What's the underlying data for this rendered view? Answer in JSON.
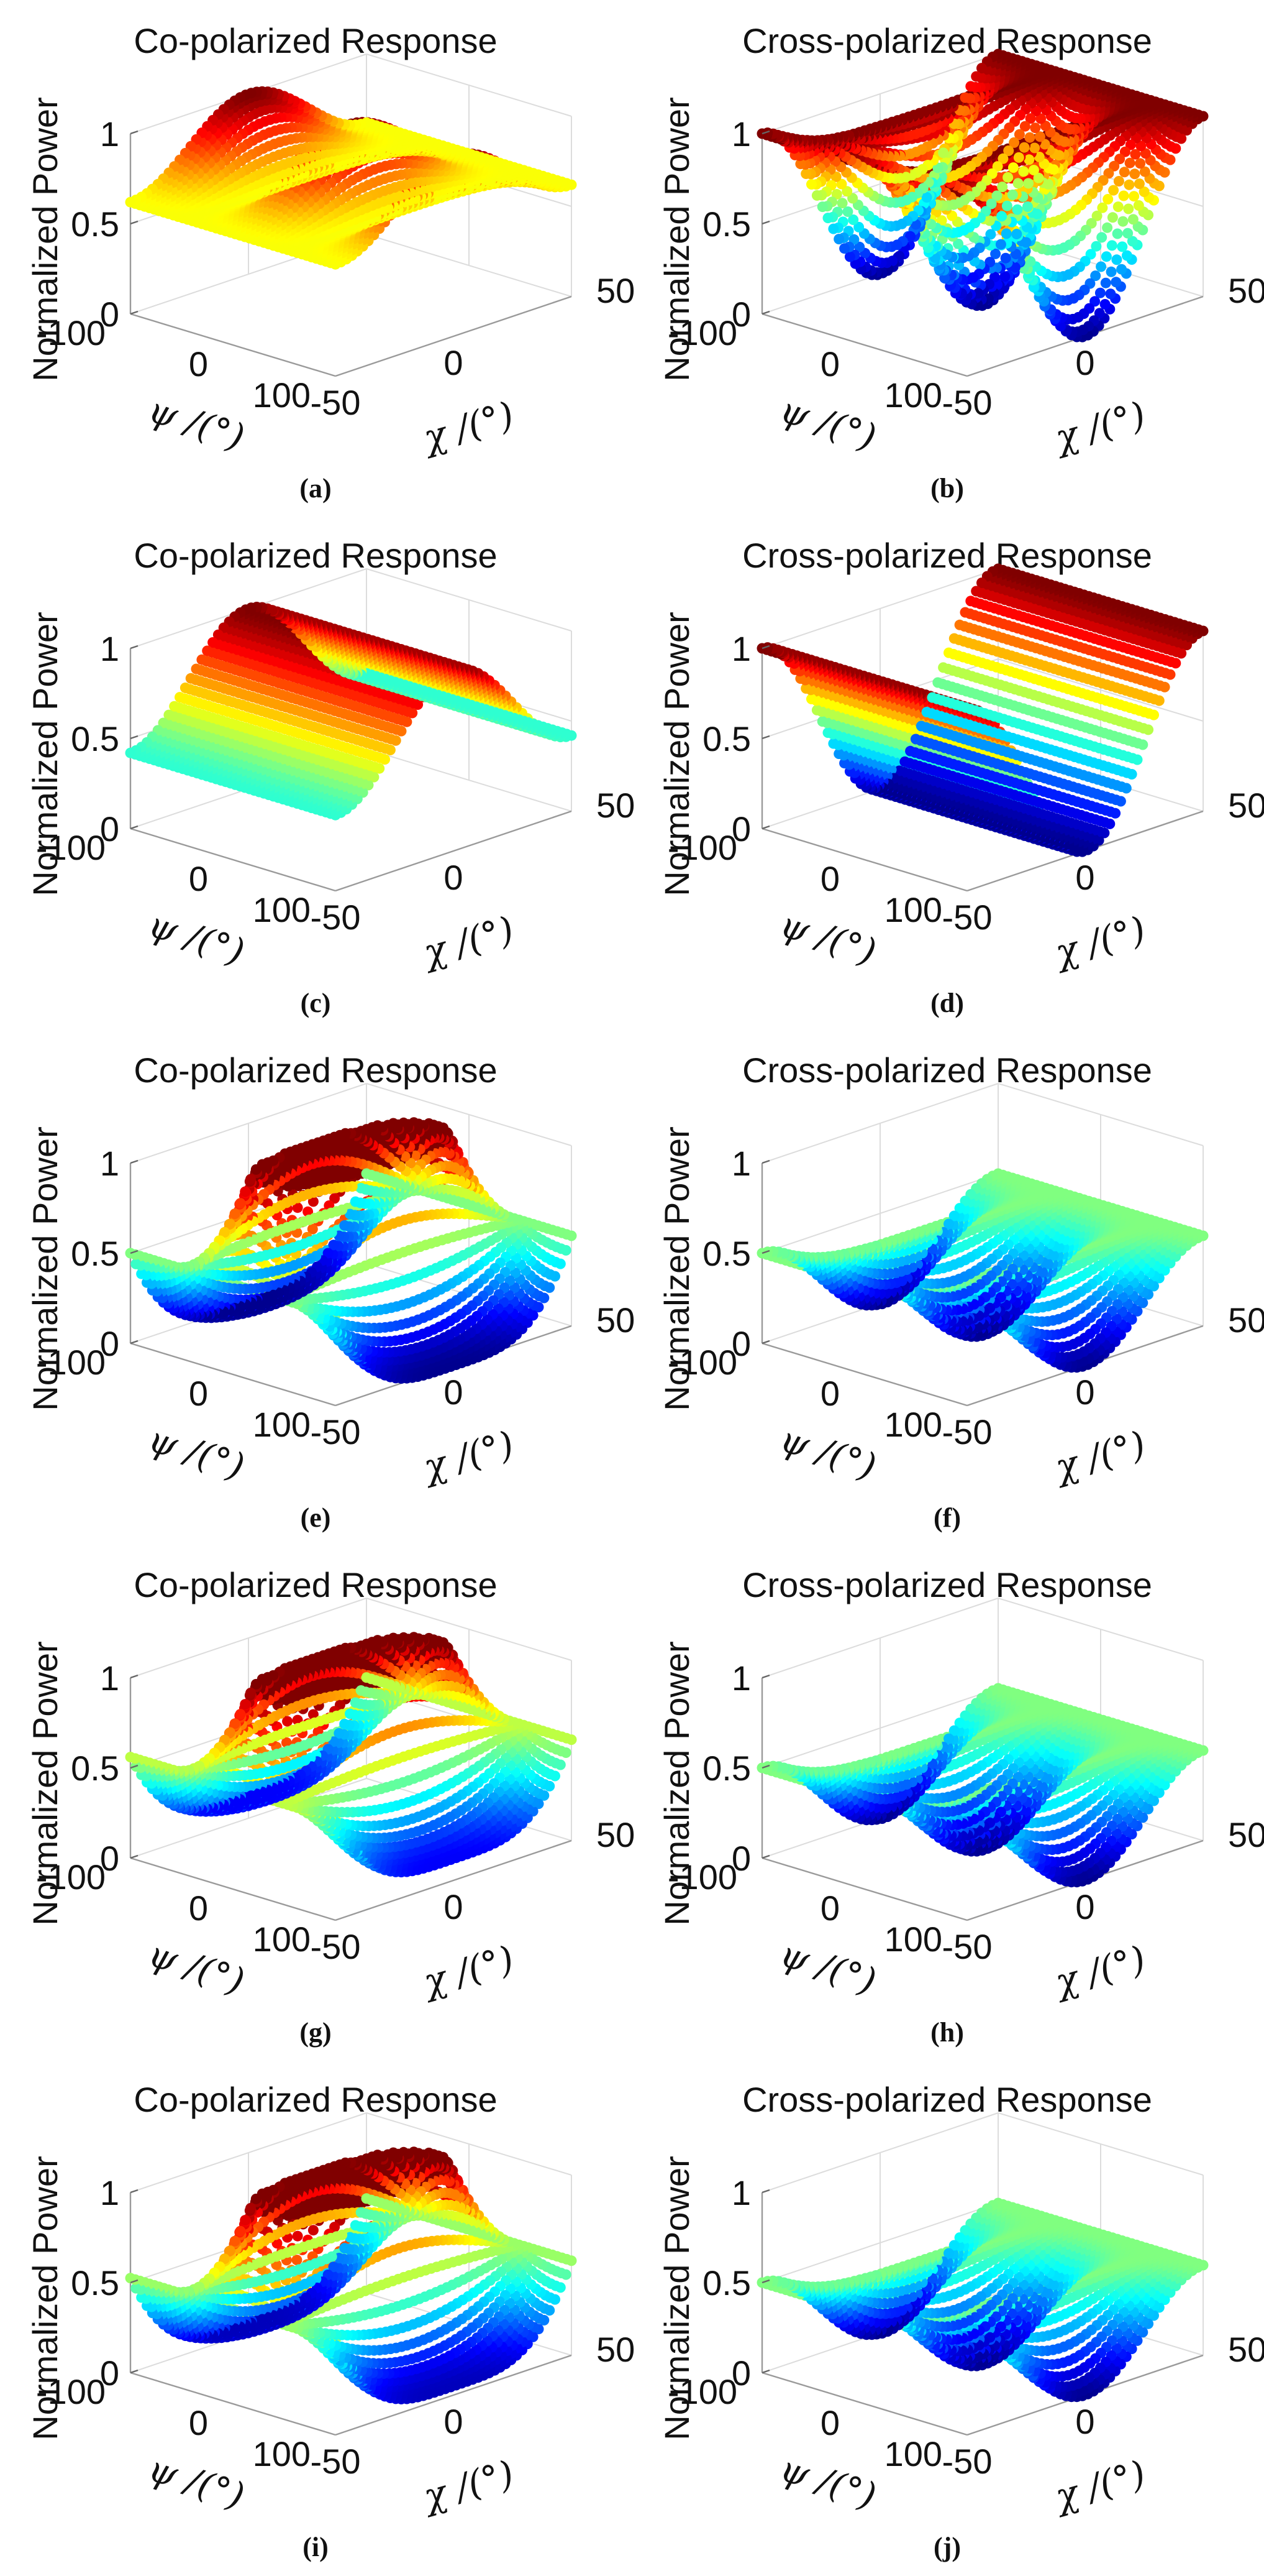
{
  "figure": {
    "colormap": [
      "#00008f",
      "#0000ff",
      "#0080ff",
      "#00ffff",
      "#80ff80",
      "#ffff00",
      "#ff8000",
      "#ff0000",
      "#800000"
    ],
    "axis_color": "#9a9a9a",
    "grid_color": "#dcdcdc"
  },
  "chart_data": [
    {
      "panel": "a",
      "caption": "(a)",
      "type": "surface3d",
      "model": "co_ellipsoid",
      "title": "Co-polarized Response",
      "zlabel": "Normalized Power",
      "xlabel": "χ /(°)",
      "ylabel": "ψ /(°)",
      "xlim": [
        -45,
        45
      ],
      "ylim": [
        -90,
        90
      ],
      "zlim": [
        0,
        1
      ],
      "xticks": [
        "-50",
        "0",
        "50"
      ],
      "yticks": [
        "-100",
        "0",
        "100"
      ],
      "zticks": [
        "0",
        "0.5",
        "1"
      ],
      "floor": 0.62
    },
    {
      "panel": "b",
      "caption": "(b)",
      "type": "surface3d",
      "model": "cross_ellipsoid",
      "title": "Cross-polarized Response",
      "zlabel": "Normalized Power",
      "xlabel": "χ /(°)",
      "ylabel": "ψ /(°)",
      "xlim": [
        -45,
        45
      ],
      "ylim": [
        -90,
        90
      ],
      "zlim": [
        0,
        1
      ],
      "xticks": [
        "-50",
        "0",
        "50"
      ],
      "yticks": [
        "-100",
        "0",
        "100"
      ],
      "zticks": [
        "0",
        "0.5",
        "1"
      ],
      "floor": 0.0
    },
    {
      "panel": "c",
      "caption": "(c)",
      "type": "surface3d",
      "model": "co_dihedral",
      "title": "Co-polarized Response",
      "zlabel": "Normalized Power",
      "xlabel": "χ /(°)",
      "ylabel": "ψ /(°)",
      "xlim": [
        -45,
        45
      ],
      "ylim": [
        -90,
        90
      ],
      "zlim": [
        0,
        1
      ],
      "xticks": [
        "-50",
        "0",
        "50"
      ],
      "yticks": [
        "-100",
        "0",
        "100"
      ],
      "zticks": [
        "0",
        "0.5",
        "1"
      ],
      "floor": 0.42
    },
    {
      "panel": "d",
      "caption": "(d)",
      "type": "surface3d",
      "model": "cross_dihedral",
      "title": "Cross-polarized Response",
      "zlabel": "Normalized Power",
      "xlabel": "χ /(°)",
      "ylabel": "ψ /(°)",
      "xlim": [
        -45,
        45
      ],
      "ylim": [
        -90,
        90
      ],
      "zlim": [
        0,
        1
      ],
      "xticks": [
        "-50",
        "0",
        "50"
      ],
      "yticks": [
        "-100",
        "0",
        "100"
      ],
      "zticks": [
        "0",
        "0.5",
        "1"
      ],
      "floor": 0.0
    },
    {
      "panel": "e",
      "caption": "(e)",
      "type": "surface3d",
      "model": "co_dipole",
      "title": "Co-polarized Response",
      "zlabel": "Normalized Power",
      "xlabel": "χ /(°)",
      "ylabel": "ψ /(°)",
      "xlim": [
        -45,
        45
      ],
      "ylim": [
        -90,
        90
      ],
      "zlim": [
        0,
        1
      ],
      "xticks": [
        "-50",
        "0",
        "50"
      ],
      "yticks": [
        "-100",
        "0",
        "100"
      ],
      "zticks": [
        "0",
        "0.5",
        "1"
      ],
      "floor": 0.0
    },
    {
      "panel": "f",
      "caption": "(f)",
      "type": "surface3d",
      "model": "cross_dipole",
      "title": "Cross-polarized Response",
      "zlabel": "Normalized Power",
      "xlabel": "χ /(°)",
      "ylabel": "ψ /(°)",
      "xlim": [
        -45,
        45
      ],
      "ylim": [
        -90,
        90
      ],
      "zlim": [
        0,
        1
      ],
      "xticks": [
        "-50",
        "0",
        "50"
      ],
      "yticks": [
        "-100",
        "0",
        "100"
      ],
      "zticks": [
        "0",
        "0.5",
        "1"
      ],
      "floor": 0.0
    },
    {
      "panel": "g",
      "caption": "(g)",
      "type": "surface3d",
      "model": "co_dipole2",
      "title": "Co-polarized Response",
      "zlabel": "Normalized Power",
      "xlabel": "χ /(°)",
      "ylabel": "ψ /(°)",
      "xlim": [
        -45,
        45
      ],
      "ylim": [
        -90,
        90
      ],
      "zlim": [
        0,
        1
      ],
      "xticks": [
        "-50",
        "0",
        "50"
      ],
      "yticks": [
        "-100",
        "0",
        "100"
      ],
      "zticks": [
        "0",
        "0.5",
        "1"
      ],
      "floor": 0.12
    },
    {
      "panel": "h",
      "caption": "(h)",
      "type": "surface3d",
      "model": "cross_dipole2",
      "title": "Cross-polarized Response",
      "zlabel": "Normalized Power",
      "xlabel": "χ /(°)",
      "ylabel": "ψ /(°)",
      "xlim": [
        -45,
        45
      ],
      "ylim": [
        -90,
        90
      ],
      "zlim": [
        0,
        1
      ],
      "xticks": [
        "-50",
        "0",
        "50"
      ],
      "yticks": [
        "-100",
        "0",
        "100"
      ],
      "zticks": [
        "0",
        "0.5",
        "1"
      ],
      "floor": 0.0
    },
    {
      "panel": "i",
      "caption": "(i)",
      "type": "surface3d",
      "model": "co_dipole3",
      "title": "Co-polarized Response",
      "zlabel": "Normalized Power",
      "xlabel": "χ /(°)",
      "ylabel": "ψ /(°)",
      "xlim": [
        -45,
        45
      ],
      "ylim": [
        -90,
        90
      ],
      "zlim": [
        0,
        1
      ],
      "xticks": [
        "-50",
        "0",
        "50"
      ],
      "yticks": [
        "-100",
        "0",
        "100"
      ],
      "zticks": [
        "0",
        "0.5",
        "1"
      ],
      "floor": 0.05
    },
    {
      "panel": "j",
      "caption": "(j)",
      "type": "surface3d",
      "model": "cross_dipole3",
      "title": "Cross-polarized Response",
      "zlabel": "Normalized Power",
      "xlabel": "χ /(°)",
      "ylabel": "ψ /(°)",
      "xlim": [
        -45,
        45
      ],
      "ylim": [
        -90,
        90
      ],
      "zlim": [
        0,
        1
      ],
      "xticks": [
        "-50",
        "0",
        "50"
      ],
      "yticks": [
        "-100",
        "0",
        "100"
      ],
      "zticks": [
        "0",
        "0.5",
        "1"
      ],
      "floor": 0.0
    }
  ]
}
